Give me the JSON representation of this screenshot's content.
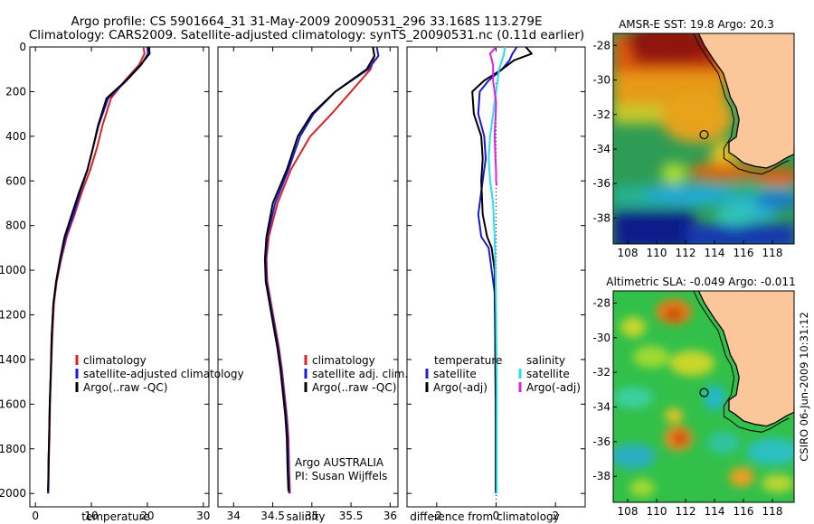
{
  "header": {
    "line1": "Argo profile: CS 5901664_31 31-May-2009 20090531_296 33.168S 113.279E",
    "line2": "Climatology: CARS2009. Satellite-adjusted climatology: synTS_20090531.nc (0.11d earlier)"
  },
  "side_stamp": "CSIRO 06-Jun-2009 10:31:12",
  "colors": {
    "climatology": "#e02020",
    "satellite": "#1a1ad8",
    "argo": "#000000",
    "salinity_satellite": "#22e0f0",
    "salinity_argo": "#e020e0",
    "land": "#fbc79a",
    "coast": "#000000"
  },
  "chart_data": [
    {
      "type": "line",
      "id": "temperature",
      "xlabel": "temperature",
      "ylabel": "",
      "xlim": [
        -1,
        31
      ],
      "ylim": [
        2060,
        0
      ],
      "xticks": [
        0,
        10,
        20,
        30
      ],
      "yticks": [
        0,
        200,
        400,
        600,
        800,
        1000,
        1200,
        1400,
        1600,
        1800,
        2000
      ],
      "legend": [
        "climatology",
        "satellite-adjusted climatology",
        "Argo(..raw -QC)"
      ],
      "series": [
        {
          "name": "climatology",
          "color": "#e02020",
          "x": [
            19.3,
            19.5,
            18.5,
            16.0,
            13.5,
            12.0,
            11.0,
            9.8,
            8.3,
            7.0,
            5.6,
            4.6,
            3.8,
            3.3,
            3.0,
            2.8,
            2.6,
            2.5,
            2.4,
            2.35,
            2.3
          ],
          "y": [
            0,
            30,
            80,
            150,
            230,
            350,
            450,
            550,
            650,
            750,
            850,
            950,
            1050,
            1150,
            1300,
            1450,
            1600,
            1750,
            1850,
            1950,
            2000
          ]
        },
        {
          "name": "satellite-adjusted climatology",
          "color": "#1a1ad8",
          "x": [
            20.0,
            20.1,
            18.9,
            16.3,
            13.0,
            11.3,
            10.3,
            9.3,
            8.0,
            6.8,
            5.4,
            4.5,
            3.7,
            3.2,
            2.9,
            2.75,
            2.55,
            2.45,
            2.35,
            2.3,
            2.25
          ],
          "y": [
            0,
            30,
            80,
            150,
            230,
            350,
            450,
            550,
            650,
            750,
            850,
            950,
            1050,
            1150,
            1300,
            1450,
            1600,
            1750,
            1850,
            1950,
            2000
          ]
        },
        {
          "name": "Argo(..raw -QC)",
          "color": "#000000",
          "x": [
            20.3,
            20.4,
            18.8,
            16.2,
            12.7,
            11.2,
            10.3,
            9.3,
            7.8,
            6.5,
            5.2,
            4.4,
            3.7,
            3.2,
            2.9,
            2.75,
            2.55,
            2.45,
            2.35,
            2.3,
            2.25
          ],
          "y": [
            0,
            30,
            80,
            150,
            230,
            350,
            450,
            550,
            650,
            750,
            850,
            950,
            1050,
            1150,
            1300,
            1450,
            1600,
            1750,
            1850,
            1950,
            1990
          ]
        }
      ]
    },
    {
      "type": "line",
      "id": "salinity",
      "xlabel": "salinity",
      "ylabel": "",
      "xlim": [
        33.8,
        36.1
      ],
      "ylim": [
        2060,
        0
      ],
      "xticks": [
        34,
        34.5,
        35,
        35.5,
        36
      ],
      "xticklabels": [
        "34",
        "34.5",
        "35",
        "35.5",
        "36"
      ],
      "legend": [
        "climatology",
        "satellite adj. clim.",
        "Argo(..raw -QC)"
      ],
      "annotation": [
        "Argo AUSTRALIA",
        "PI: Susan Wijffels"
      ],
      "series": [
        {
          "name": "climatology",
          "color": "#e02020",
          "x": [
            35.78,
            35.8,
            35.75,
            35.5,
            35.25,
            34.98,
            34.73,
            34.56,
            34.45,
            34.42,
            34.43,
            34.48,
            34.53,
            34.58,
            34.62,
            34.65,
            34.68,
            34.7,
            34.71,
            34.72
          ],
          "y": [
            0,
            40,
            100,
            200,
            300,
            400,
            550,
            700,
            850,
            950,
            1050,
            1150,
            1250,
            1350,
            1450,
            1550,
            1650,
            1750,
            1900,
            2000
          ]
        },
        {
          "name": "satellite adj. clim.",
          "color": "#1a1ad8",
          "x": [
            35.83,
            35.85,
            35.72,
            35.3,
            35.02,
            34.85,
            34.7,
            34.53,
            34.43,
            34.41,
            34.42,
            34.47,
            34.52,
            34.57,
            34.61,
            34.64,
            34.67,
            34.69,
            34.7,
            34.71
          ],
          "y": [
            0,
            40,
            100,
            200,
            300,
            400,
            550,
            700,
            850,
            950,
            1050,
            1150,
            1250,
            1350,
            1450,
            1550,
            1650,
            1750,
            1900,
            2000
          ]
        },
        {
          "name": "Argo(..raw -QC)",
          "color": "#000000",
          "x": [
            35.78,
            35.8,
            35.7,
            35.3,
            35.0,
            34.82,
            34.68,
            34.5,
            34.42,
            34.4,
            34.41,
            34.46,
            34.51,
            34.56,
            34.6,
            34.63,
            34.66,
            34.68,
            34.69,
            34.7
          ],
          "y": [
            0,
            40,
            100,
            200,
            300,
            400,
            550,
            700,
            850,
            950,
            1050,
            1150,
            1250,
            1350,
            1450,
            1550,
            1650,
            1750,
            1900,
            1990
          ]
        }
      ]
    },
    {
      "type": "line",
      "id": "difference",
      "xlabel": "difference from climatology",
      "ylabel": "",
      "xlim": [
        -3,
        3
      ],
      "ylim": [
        2060,
        0
      ],
      "xticks": [
        -2,
        0,
        2
      ],
      "legend_temperature": {
        "title": "temperature",
        "items": [
          "satellite",
          "Argo(-adj)"
        ]
      },
      "legend_salinity": {
        "title": "salinity",
        "items": [
          "satellite",
          "Argo(-adj)"
        ]
      },
      "series": [
        {
          "name": "temperature satellite",
          "color": "#1a1ad8",
          "x": [
            0.7,
            0.55,
            0.45,
            0.2,
            -0.25,
            -0.55,
            -0.6,
            -0.4,
            -0.35,
            -0.45,
            -0.6,
            -0.5,
            -0.25,
            -0.15,
            -0.05,
            -0.03,
            -0.02,
            -0.01,
            -0.01,
            -0.01
          ],
          "y": [
            0,
            30,
            60,
            100,
            150,
            200,
            300,
            400,
            500,
            600,
            750,
            850,
            900,
            1000,
            1100,
            1300,
            1500,
            1700,
            1900,
            2000
          ]
        },
        {
          "name": "temperature Argo(-adj)",
          "color": "#000000",
          "x": [
            1.0,
            1.2,
            0.6,
            0.2,
            -0.4,
            -0.8,
            -0.75,
            -0.5,
            -0.45,
            -0.5,
            -0.45,
            -0.3,
            -0.15,
            -0.05,
            -0.03,
            -0.02,
            -0.01,
            -0.01,
            -0.01
          ],
          "y": [
            0,
            30,
            60,
            100,
            150,
            200,
            300,
            400,
            500,
            600,
            750,
            850,
            900,
            1000,
            1200,
            1400,
            1600,
            1800,
            1990
          ]
        },
        {
          "name": "salinity satellite",
          "color": "#22e0f0",
          "x": [
            0.3,
            0.25,
            0.1,
            0.0,
            -0.1,
            -0.2,
            -0.25,
            -0.2,
            -0.1,
            -0.05,
            -0.02,
            0.0,
            0.02,
            0.02,
            0.02
          ],
          "y": [
            0,
            40,
            100,
            200,
            300,
            400,
            500,
            600,
            700,
            850,
            1000,
            1200,
            1500,
            1800,
            2000
          ]
        },
        {
          "name": "salinity Argo(-adj)",
          "color": "#e020e0",
          "x": [
            0.0,
            -0.2,
            -0.1,
            -0.1,
            0.0,
            -0.05,
            -0.02,
            0.0,
            0.0,
            0.02
          ],
          "y": [
            0,
            30,
            80,
            150,
            250,
            400,
            500,
            560,
            600,
            620
          ]
        }
      ]
    },
    {
      "type": "heatmap",
      "id": "sst_map",
      "title": "AMSR-E SST: 19.8 Argo: 20.3",
      "xlim": [
        107,
        119.5
      ],
      "ylim": [
        -39.5,
        -27.3
      ],
      "xticks": [
        108,
        110,
        112,
        114,
        116,
        118
      ],
      "yticks": [
        -28,
        -30,
        -32,
        -34,
        -36,
        -38
      ],
      "marker": {
        "lon": 113.279,
        "lat": -33.168
      }
    },
    {
      "type": "heatmap",
      "id": "sla_map",
      "title": "Altimetric SLA: -0.049 Argo: -0.011",
      "xlim": [
        107,
        119.5
      ],
      "ylim": [
        -39.5,
        -27.3
      ],
      "xticks": [
        108,
        110,
        112,
        114,
        116,
        118
      ],
      "yticks": [
        -28,
        -30,
        -32,
        -34,
        -36,
        -38
      ],
      "marker": {
        "lon": 113.279,
        "lat": -33.168
      }
    }
  ]
}
